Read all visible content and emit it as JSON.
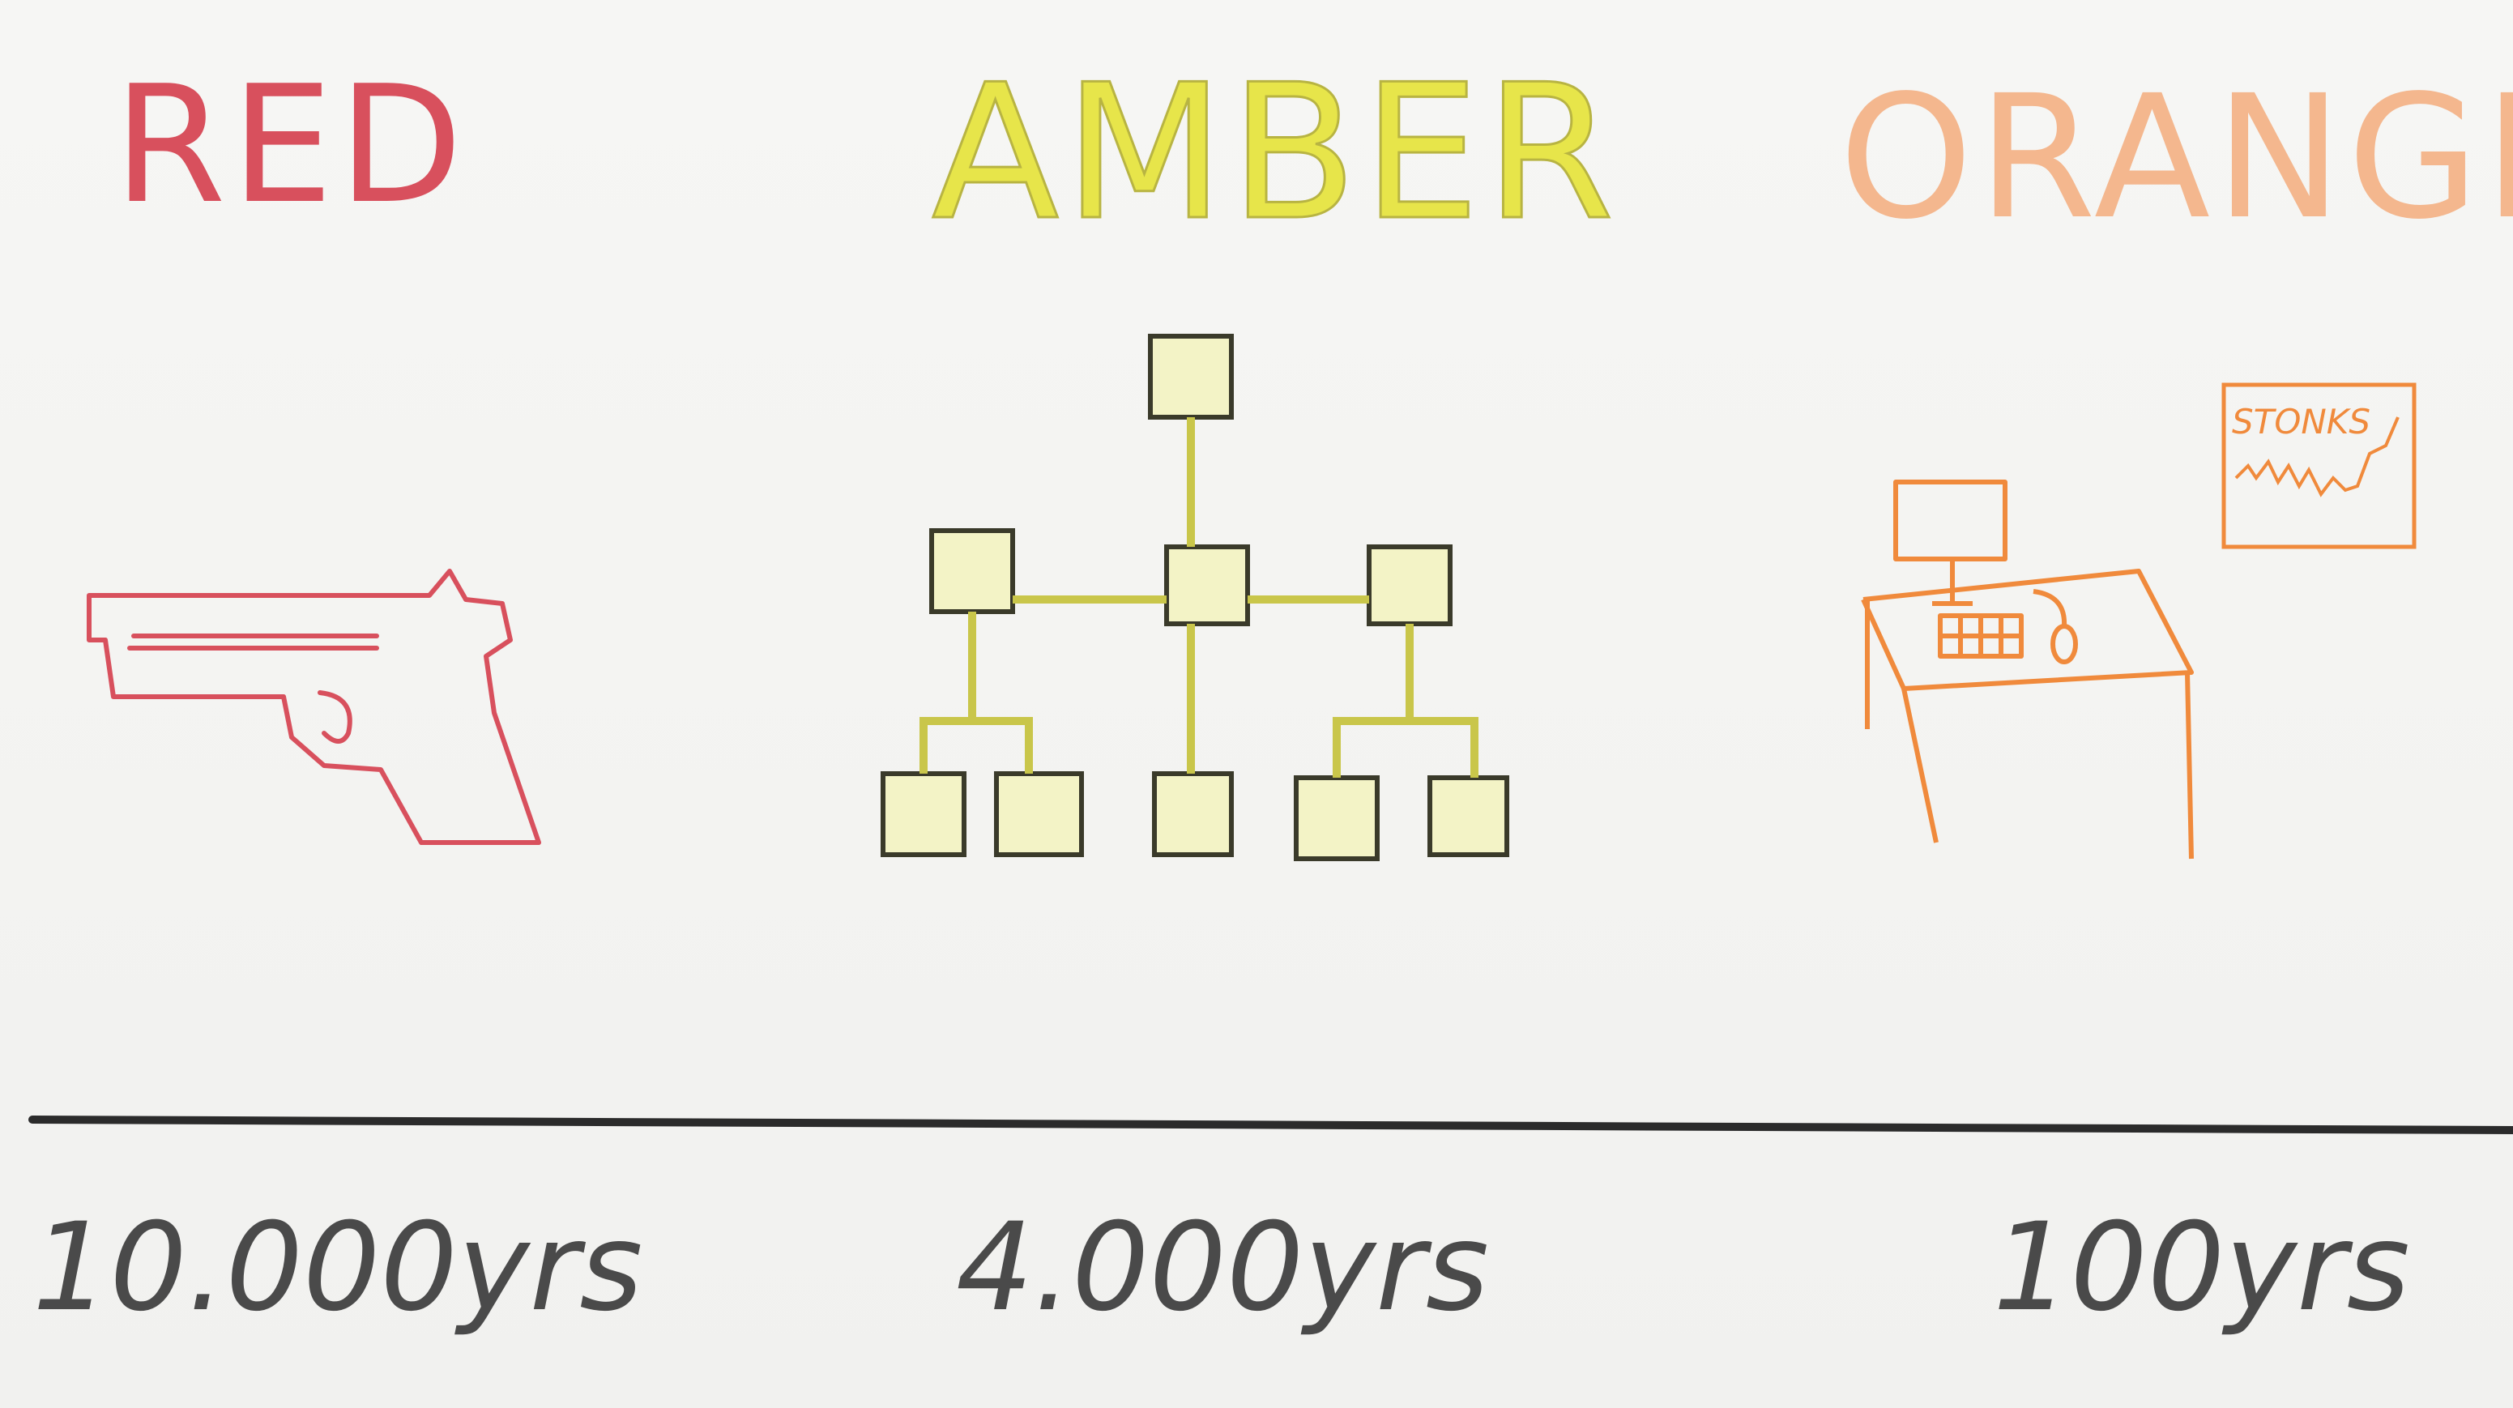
{
  "columns": [
    {
      "heading": "RED",
      "icon": "pistol-icon",
      "years": "10.000yrs",
      "color": "#d8505d"
    },
    {
      "heading": "AMBER",
      "icon": "hierarchy-tree-icon",
      "years": "4.000yrs",
      "color": "#e7e54a"
    },
    {
      "heading": "ORANGE",
      "icon": "computer-desk-icon",
      "years": "100yrs",
      "color": "#f08a3c"
    }
  ],
  "chart_sign": "STONKS",
  "colors": {
    "red": "#d8505d",
    "amber": "#e7e54a",
    "amber_outline": "#3a3a2a",
    "orange": "#f08a3c",
    "timeline": "#2b2b2b"
  }
}
